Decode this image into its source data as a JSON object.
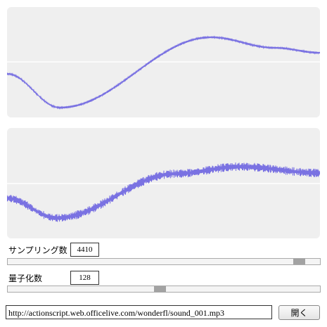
{
  "controls": {
    "sampling": {
      "label": "サンプリング数",
      "value": "4410"
    },
    "quantization": {
      "label": "量子化数",
      "value": "128"
    },
    "url": "http://actionscript.web.officelive.com/wonderfl/sound_001.mp3",
    "open_button": "開く"
  }
}
